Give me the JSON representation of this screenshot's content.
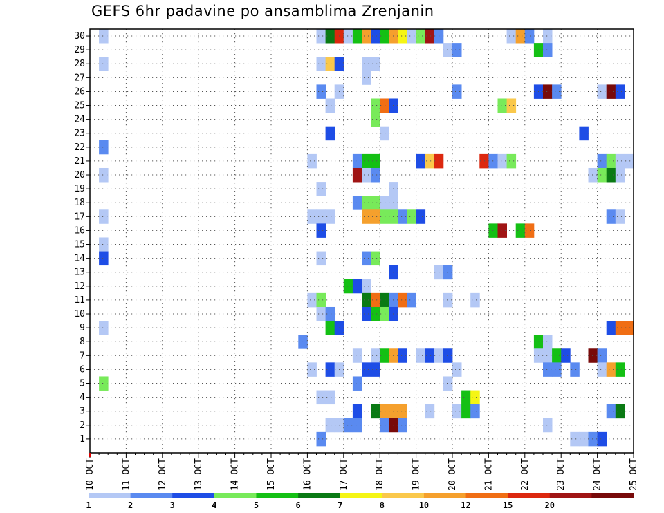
{
  "chart_data": {
    "type": "heatmap",
    "title": "GEFS 6hr padavine po ansamblima Zrenjanin",
    "xlabel": "",
    "ylabel": "",
    "x_ticks": [
      "10 OCT",
      "11 OCT",
      "12 OCT",
      "13 OCT",
      "14 OCT",
      "15 OCT",
      "16 OCT",
      "17 OCT",
      "18 OCT",
      "19 OCT",
      "20 OCT",
      "21 OCT",
      "22 OCT",
      "23 OCT",
      "24 OCT",
      "25 OCT"
    ],
    "y_ticks": [
      1,
      2,
      3,
      4,
      5,
      6,
      7,
      8,
      9,
      10,
      11,
      12,
      13,
      14,
      15,
      16,
      17,
      18,
      19,
      20,
      21,
      22,
      23,
      24,
      25,
      26,
      27,
      28,
      29,
      30
    ],
    "ylim": [
      0,
      30
    ],
    "time_steps_per_day": 4,
    "grid": true,
    "colorbar": {
      "labels": [
        "1",
        "2",
        "3",
        "4",
        "5",
        "6",
        "7",
        "8",
        "10",
        "12",
        "15",
        "20"
      ],
      "colors": [
        "#b4c8f5",
        "#5a8af0",
        "#1e4de6",
        "#78ea5a",
        "#14c014",
        "#0a7a14",
        "#f5f514",
        "#fac84b",
        "#f5a02d",
        "#f06e14",
        "#dc280f",
        "#a01414",
        "#780a0a"
      ]
    },
    "legend_placement": "bottom",
    "cells": [
      {
        "m": 30,
        "c": [
          [
            0.25,
            0
          ],
          [
            6.25,
            0
          ],
          [
            6.5,
            5
          ],
          [
            6.75,
            10
          ],
          [
            7,
            0
          ],
          [
            7.25,
            4
          ],
          [
            7.5,
            8
          ],
          [
            7.75,
            2
          ],
          [
            8,
            4
          ],
          [
            8.25,
            8
          ],
          [
            8.5,
            6
          ],
          [
            8.75,
            0
          ],
          [
            9,
            3
          ],
          [
            9.25,
            11
          ],
          [
            9.5,
            1
          ],
          [
            11.5,
            0
          ],
          [
            11.75,
            8
          ],
          [
            12,
            1
          ],
          [
            12.5,
            0
          ]
        ]
      },
      {
        "m": 29,
        "c": [
          [
            9.75,
            0
          ],
          [
            10,
            1
          ],
          [
            12.25,
            4
          ],
          [
            12.5,
            1
          ]
        ]
      },
      {
        "m": 28,
        "c": [
          [
            0.25,
            0
          ],
          [
            6.25,
            0
          ],
          [
            6.5,
            7
          ],
          [
            6.75,
            2
          ],
          [
            7.5,
            0
          ],
          [
            7.75,
            0
          ]
        ]
      },
      {
        "m": 27,
        "c": [
          [
            7.5,
            0
          ]
        ]
      },
      {
        "m": 26,
        "c": [
          [
            6.25,
            1
          ],
          [
            6.75,
            0
          ],
          [
            10,
            1
          ],
          [
            12.25,
            2
          ],
          [
            12.5,
            12
          ],
          [
            12.75,
            1
          ],
          [
            14,
            0
          ],
          [
            14.25,
            12
          ],
          [
            14.5,
            2
          ]
        ]
      },
      {
        "m": 25,
        "c": [
          [
            6.5,
            0
          ],
          [
            7.75,
            3
          ],
          [
            8,
            9
          ],
          [
            8.25,
            2
          ],
          [
            11.25,
            3
          ],
          [
            11.5,
            7
          ]
        ]
      },
      {
        "m": 24,
        "c": [
          [
            7.75,
            3
          ]
        ]
      },
      {
        "m": 23,
        "c": [
          [
            6.5,
            2
          ],
          [
            8,
            0
          ],
          [
            13.5,
            2
          ]
        ]
      },
      {
        "m": 22,
        "c": [
          [
            0.25,
            1
          ]
        ]
      },
      {
        "m": 21,
        "c": [
          [
            6,
            0
          ],
          [
            7.25,
            1
          ],
          [
            7.5,
            4
          ],
          [
            7.75,
            4
          ],
          [
            9,
            2
          ],
          [
            9.25,
            7
          ],
          [
            9.5,
            10
          ],
          [
            10.75,
            10
          ],
          [
            11,
            1
          ],
          [
            11.25,
            0
          ],
          [
            11.5,
            3
          ],
          [
            14,
            1
          ],
          [
            14.25,
            3
          ],
          [
            14.5,
            0
          ],
          [
            14.75,
            0
          ]
        ]
      },
      {
        "m": 20,
        "c": [
          [
            0.25,
            0
          ],
          [
            7.25,
            11
          ],
          [
            7.5,
            0
          ],
          [
            7.75,
            1
          ],
          [
            13.75,
            0
          ],
          [
            14,
            3
          ],
          [
            14.25,
            5
          ],
          [
            14.5,
            0
          ]
        ]
      },
      {
        "m": 19,
        "c": [
          [
            6.25,
            0
          ],
          [
            8.25,
            0
          ]
        ]
      },
      {
        "m": 18,
        "c": [
          [
            7.25,
            1
          ],
          [
            7.5,
            3
          ],
          [
            7.75,
            3
          ],
          [
            8,
            0
          ],
          [
            8.25,
            0
          ]
        ]
      },
      {
        "m": 17,
        "c": [
          [
            0.25,
            0
          ],
          [
            6,
            0
          ],
          [
            6.25,
            0
          ],
          [
            6.5,
            0
          ],
          [
            7.5,
            8
          ],
          [
            7.75,
            8
          ],
          [
            8,
            3
          ],
          [
            8.25,
            3
          ],
          [
            8.5,
            1
          ],
          [
            8.75,
            3
          ],
          [
            9,
            2
          ],
          [
            14.25,
            1
          ],
          [
            14.5,
            0
          ]
        ]
      },
      {
        "m": 16,
        "c": [
          [
            6.25,
            2
          ],
          [
            11,
            4
          ],
          [
            11.25,
            11
          ],
          [
            11.75,
            4
          ],
          [
            12,
            9
          ]
        ]
      },
      {
        "m": 15,
        "c": [
          [
            0.25,
            0
          ]
        ]
      },
      {
        "m": 14,
        "c": [
          [
            0.25,
            2
          ],
          [
            6.25,
            0
          ],
          [
            7.5,
            1
          ],
          [
            7.75,
            3
          ]
        ]
      },
      {
        "m": 13,
        "c": [
          [
            8.25,
            2
          ],
          [
            9.5,
            0
          ],
          [
            9.75,
            1
          ]
        ]
      },
      {
        "m": 12,
        "c": [
          [
            7,
            4
          ],
          [
            7.25,
            2
          ],
          [
            7.5,
            0
          ]
        ]
      },
      {
        "m": 11,
        "c": [
          [
            6,
            0
          ],
          [
            6.25,
            3
          ],
          [
            7.5,
            5
          ],
          [
            7.75,
            9
          ],
          [
            8,
            5
          ],
          [
            8.25,
            1
          ],
          [
            8.5,
            9
          ],
          [
            8.75,
            1
          ],
          [
            9.75,
            0
          ],
          [
            10.5,
            0
          ]
        ]
      },
      {
        "m": 10,
        "c": [
          [
            6.25,
            0
          ],
          [
            6.5,
            1
          ],
          [
            7.5,
            2
          ],
          [
            7.75,
            4
          ],
          [
            8,
            3
          ],
          [
            8.25,
            2
          ]
        ]
      },
      {
        "m": 9,
        "c": [
          [
            0.25,
            0
          ],
          [
            6.5,
            4
          ],
          [
            6.75,
            2
          ],
          [
            14.25,
            2
          ],
          [
            14.5,
            9
          ],
          [
            14.75,
            9
          ]
        ]
      },
      {
        "m": 8,
        "c": [
          [
            5.75,
            1
          ],
          [
            12.25,
            4
          ],
          [
            12.5,
            0
          ]
        ]
      },
      {
        "m": 7,
        "c": [
          [
            7.25,
            0
          ],
          [
            7.75,
            0
          ],
          [
            8,
            4
          ],
          [
            8.25,
            8
          ],
          [
            8.5,
            2
          ],
          [
            9,
            0
          ],
          [
            9.25,
            2
          ],
          [
            9.5,
            0
          ],
          [
            9.75,
            2
          ],
          [
            12.25,
            0
          ],
          [
            12.5,
            0
          ],
          [
            12.75,
            4
          ],
          [
            13,
            2
          ],
          [
            13.75,
            12
          ],
          [
            14,
            1
          ]
        ]
      },
      {
        "m": 6,
        "c": [
          [
            6,
            0
          ],
          [
            6.5,
            2
          ],
          [
            6.75,
            0
          ],
          [
            7.5,
            2
          ],
          [
            7.75,
            2
          ],
          [
            10,
            0
          ],
          [
            12.5,
            1
          ],
          [
            12.75,
            1
          ],
          [
            13.25,
            1
          ],
          [
            14,
            0
          ],
          [
            14.25,
            8
          ],
          [
            14.5,
            4
          ]
        ]
      },
      {
        "m": 5,
        "c": [
          [
            0.25,
            3
          ],
          [
            7.25,
            1
          ],
          [
            9.75,
            0
          ]
        ]
      },
      {
        "m": 4,
        "c": [
          [
            6.25,
            0
          ],
          [
            6.5,
            0
          ],
          [
            10.25,
            4
          ],
          [
            10.5,
            6
          ]
        ]
      },
      {
        "m": 3,
        "c": [
          [
            7.25,
            2
          ],
          [
            7.75,
            5
          ],
          [
            8,
            8
          ],
          [
            8.25,
            8
          ],
          [
            8.5,
            8
          ],
          [
            9.25,
            0
          ],
          [
            10,
            0
          ],
          [
            10.25,
            4
          ],
          [
            10.5,
            1
          ],
          [
            14.25,
            1
          ],
          [
            14.5,
            5
          ]
        ]
      },
      {
        "m": 2,
        "c": [
          [
            6.5,
            0
          ],
          [
            6.75,
            0
          ],
          [
            7,
            1
          ],
          [
            7.25,
            1
          ],
          [
            8,
            1
          ],
          [
            8.25,
            12
          ],
          [
            8.5,
            1
          ],
          [
            12.5,
            0
          ]
        ]
      },
      {
        "m": 1,
        "c": [
          [
            6.25,
            1
          ],
          [
            13.25,
            0
          ],
          [
            13.5,
            0
          ],
          [
            13.75,
            1
          ],
          [
            14,
            2
          ]
        ]
      }
    ]
  }
}
